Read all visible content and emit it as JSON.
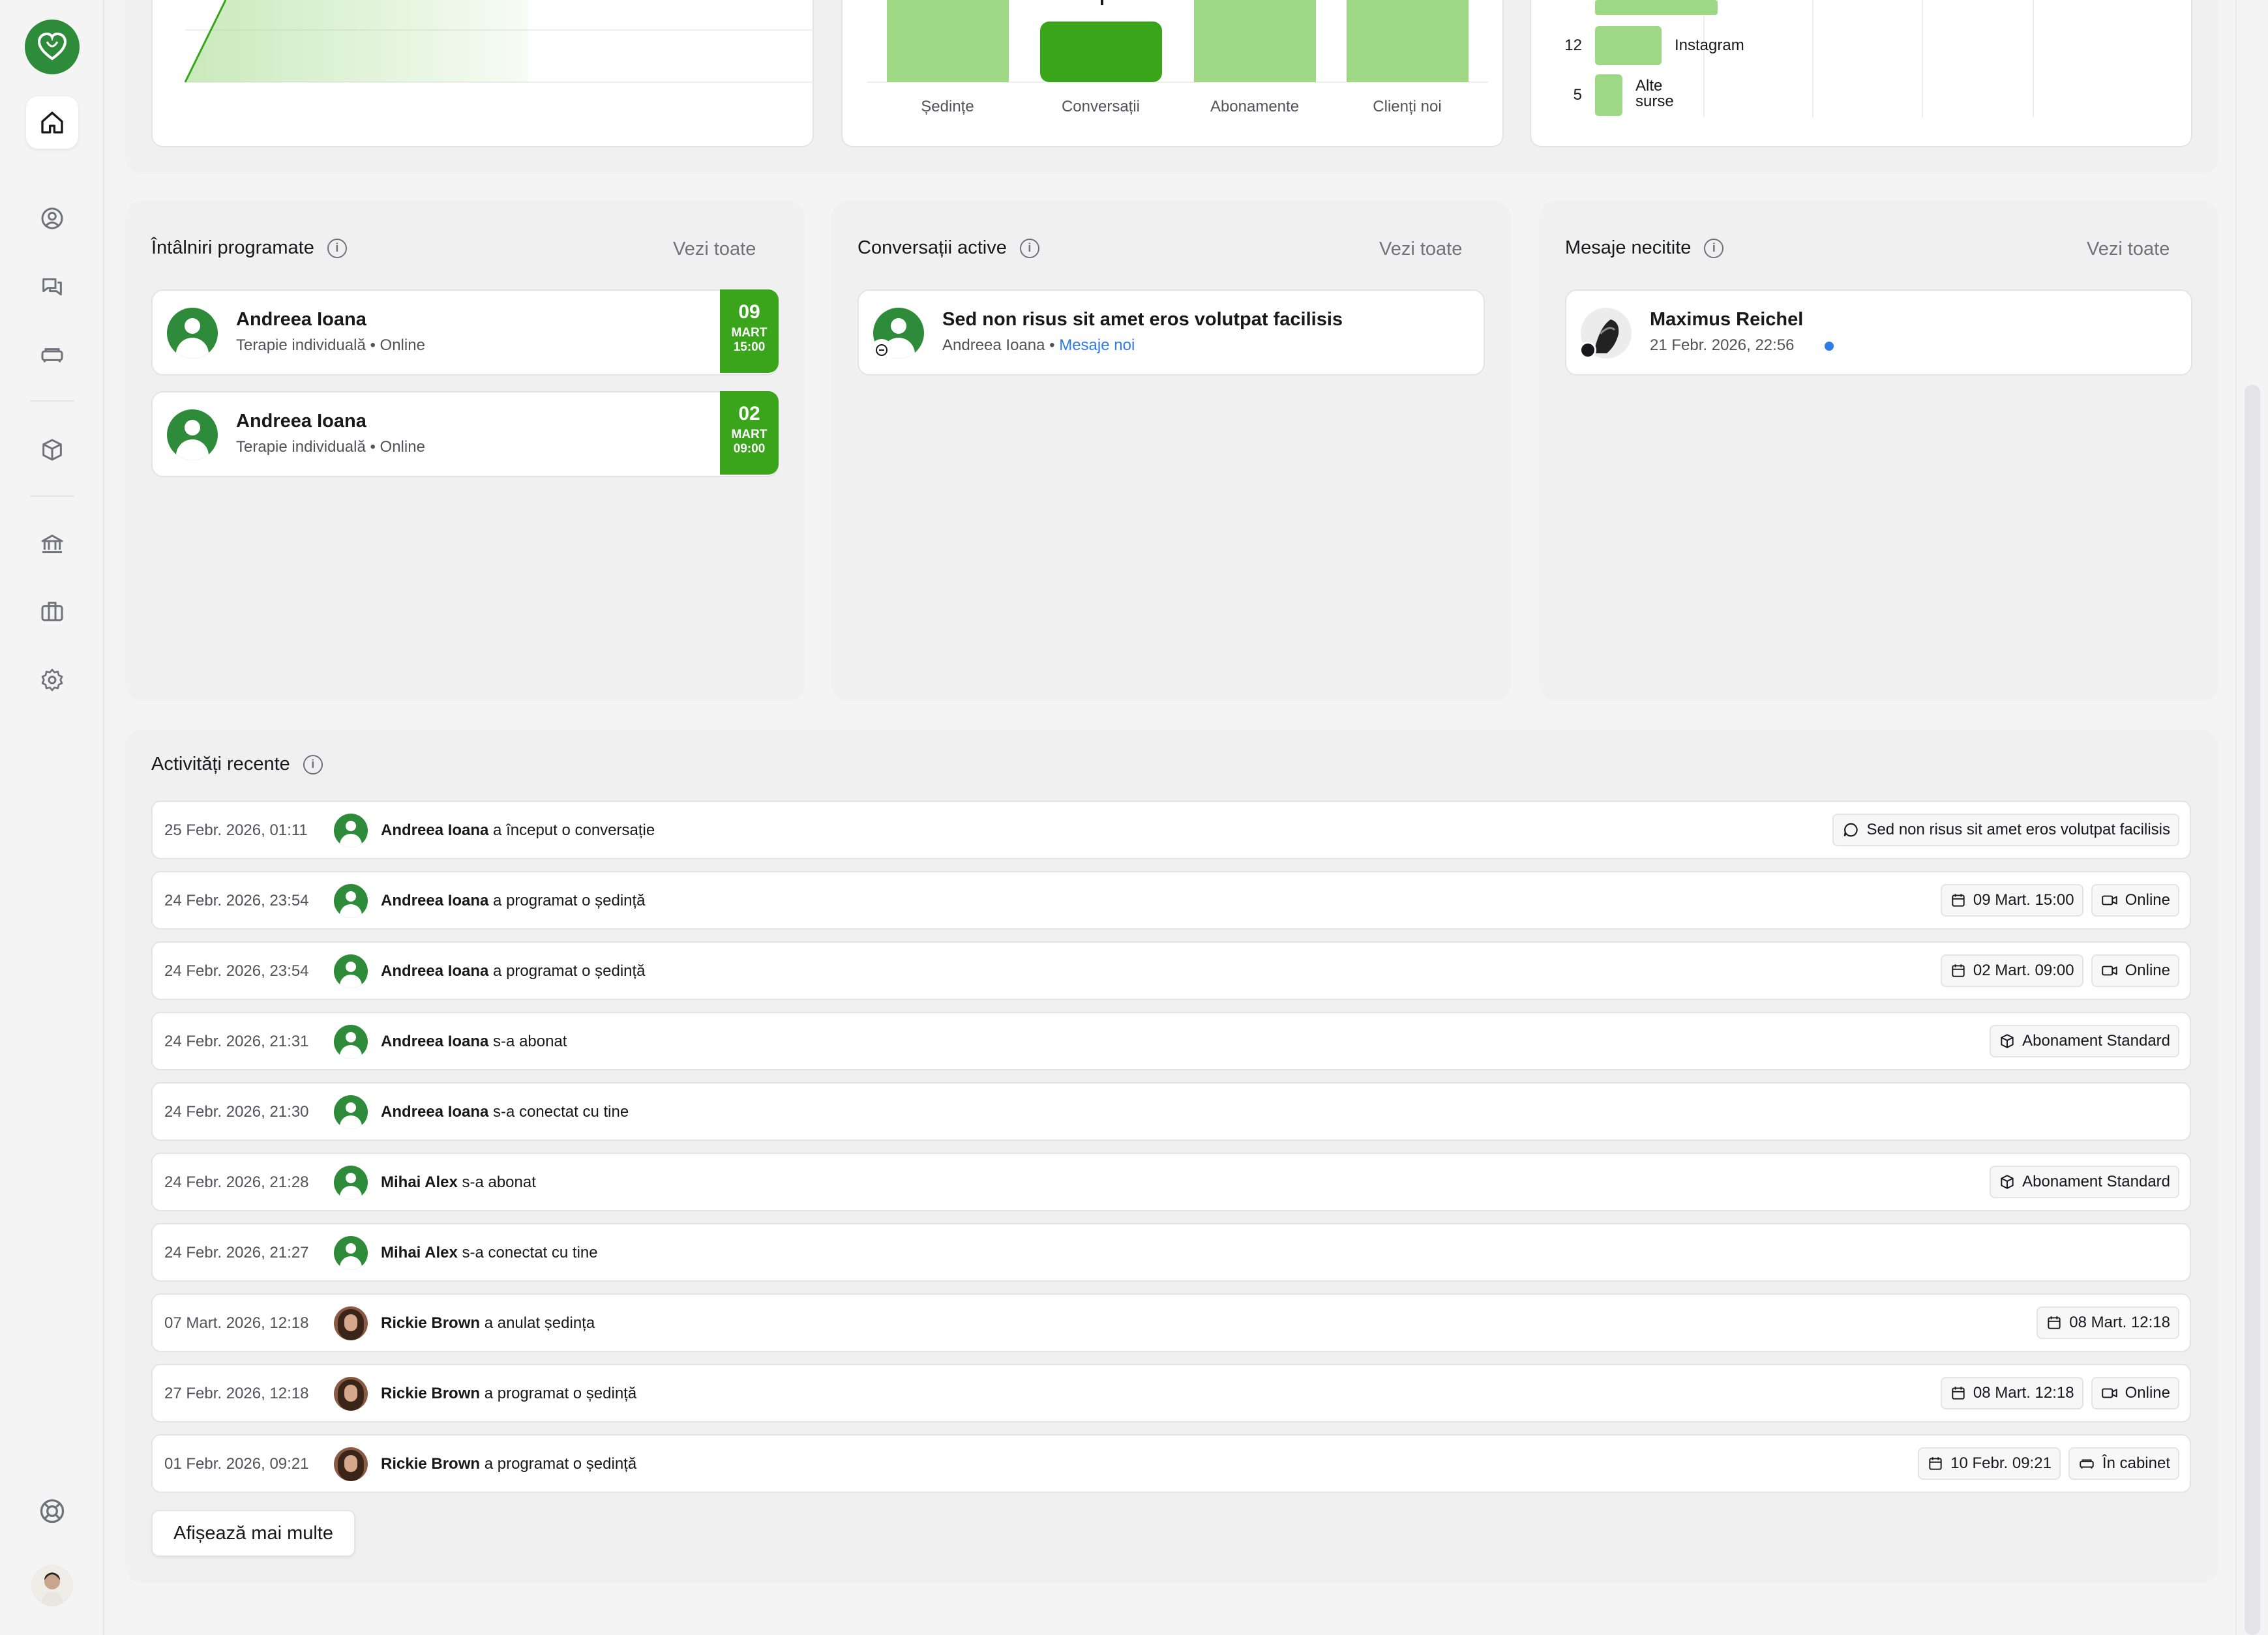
{
  "sidebar": {
    "nav": [
      "home-icon",
      "user-icon",
      "chat-icon",
      "sofa-icon",
      "package-icon",
      "bank-icon",
      "briefcase-icon",
      "settings-icon",
      "support-icon"
    ]
  },
  "colors": {
    "brand_green": "#2e8b3a",
    "bar_light": "#9ed884",
    "bar_dark": "#3aa51a",
    "link_blue": "#2f7be5"
  },
  "charts_top": {
    "chart_data": [
      {
        "type": "bar",
        "categories": [
          "Ședințe",
          "Conversații",
          "Abonamente",
          "Clienți noi"
        ]
      },
      {
        "type": "bar",
        "orientation": "horizontal",
        "categories": [
          "Instagram",
          "Alte surse"
        ],
        "values": [
          12,
          5
        ]
      }
    ]
  },
  "meetings": {
    "title": "Întâlniri programate",
    "see_all": "Vezi toate",
    "items": [
      {
        "name": "Andreea Ioana",
        "sub": "Terapie individuală • Online",
        "day": "09",
        "month": "MART",
        "time": "15:00"
      },
      {
        "name": "Andreea Ioana",
        "sub": "Terapie individuală • Online",
        "day": "02",
        "month": "MART",
        "time": "09:00"
      }
    ]
  },
  "conversations": {
    "title": "Conversații active",
    "see_all": "Vezi toate",
    "items": [
      {
        "subject": "Sed non risus sit amet eros volutpat facilisis",
        "from": "Andreea Ioana",
        "sep": " • ",
        "status": "Mesaje noi"
      }
    ]
  },
  "unread": {
    "title": "Mesaje necitite",
    "see_all": "Vezi toate",
    "items": [
      {
        "name": "Maximus Reichel",
        "date": "21 Febr. 2026, 22:56"
      }
    ]
  },
  "activities": {
    "title": "Activități recente",
    "more": "Afișează mai multe",
    "rows": [
      {
        "date": "25 Febr. 2026, 01:11",
        "who": "Andreea Ioana",
        "action": " a început o conversație",
        "chip1": "Sed non risus sit amet eros volutpat facilisis"
      },
      {
        "date": "24 Febr. 2026, 23:54",
        "who": "Andreea Ioana",
        "action": " a programat o ședință",
        "chip1": "09 Mart. 15:00",
        "chip2": "Online"
      },
      {
        "date": "24 Febr. 2026, 23:54",
        "who": "Andreea Ioana",
        "action": " a programat o ședință",
        "chip1": "02 Mart. 09:00",
        "chip2": "Online"
      },
      {
        "date": "24 Febr. 2026, 21:31",
        "who": "Andreea Ioana",
        "action": " s-a abonat",
        "chip1": "Abonament Standard"
      },
      {
        "date": "24 Febr. 2026, 21:30",
        "who": "Andreea Ioana",
        "action": " s-a conectat cu tine"
      },
      {
        "date": "24 Febr. 2026, 21:28",
        "who": "Mihai Alex",
        "action": " s-a abonat",
        "chip1": "Abonament Standard"
      },
      {
        "date": "24 Febr. 2026, 21:27",
        "who": "Mihai Alex",
        "action": " s-a conectat cu tine"
      },
      {
        "date": "07 Mart. 2026, 12:18",
        "who": "Rickie Brown",
        "action": " a anulat ședința",
        "chip1": "08 Mart. 12:18"
      },
      {
        "date": "27 Febr. 2026, 12:18",
        "who": "Rickie Brown",
        "action": " a programat o ședință",
        "chip1": "08 Mart. 12:18",
        "chip2": "Online"
      },
      {
        "date": "01 Febr. 2026, 09:21",
        "who": "Rickie Brown",
        "action": " a programat o ședință",
        "chip1": "10 Febr. 09:21",
        "chip2": "În cabinet"
      }
    ]
  }
}
